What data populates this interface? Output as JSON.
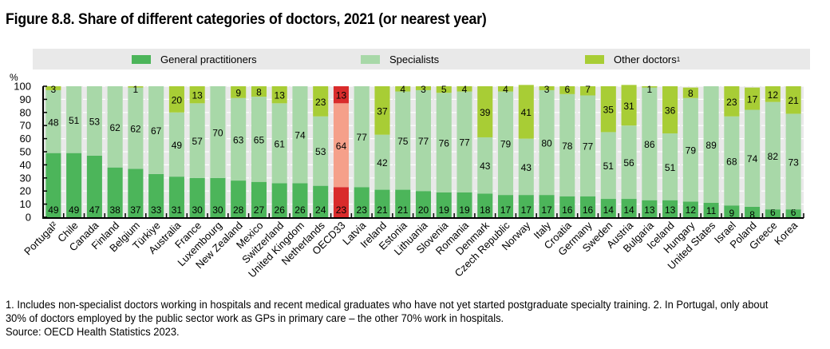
{
  "chart_data": {
    "type": "bar",
    "stacked": true,
    "title": "Figure 8.8. Share of different categories of doctors, 2021 (or nearest year)",
    "ylabel": "%",
    "xlabel": "",
    "ylim": [
      0,
      100
    ],
    "yticks": [
      0,
      10,
      20,
      30,
      40,
      50,
      60,
      70,
      80,
      90,
      100
    ],
    "grid": true,
    "legend_position": "top",
    "categories": [
      "Portugal²",
      "Chile",
      "Canada",
      "Finland",
      "Belgium",
      "Türkiye",
      "Australia",
      "France",
      "Luxembourg",
      "New Zealand",
      "Mexico",
      "Switzerland",
      "United Kingdom",
      "Netherlands",
      "OECD33",
      "Latvia",
      "Ireland",
      "Estonia",
      "Lithuania",
      "Slovenia",
      "Romania",
      "Denmark",
      "Czech Republic",
      "Norway",
      "Italy",
      "Croatia",
      "Germany",
      "Sweden",
      "Austria",
      "Bulgaria",
      "Iceland",
      "Hungary",
      "United States",
      "Israel",
      "Poland",
      "Greece",
      "Korea"
    ],
    "highlight_category": "OECD33",
    "series": [
      {
        "name": "General practitioners",
        "color": "#4cb55a",
        "highlight_color": "#d92b2b",
        "values": [
          49,
          49,
          47,
          38,
          37,
          33,
          31,
          30,
          30,
          28,
          27,
          26,
          26,
          24,
          23,
          23,
          21,
          21,
          20,
          19,
          19,
          18,
          17,
          17,
          17,
          16,
          16,
          14,
          14,
          13,
          13,
          12,
          11,
          9,
          8,
          6,
          6
        ]
      },
      {
        "name": "Specialists",
        "color": "#a8d8a8",
        "highlight_color": "#f5a08a",
        "values": [
          48,
          51,
          53,
          62,
          62,
          67,
          49,
          57,
          70,
          63,
          65,
          61,
          74,
          53,
          64,
          77,
          42,
          75,
          77,
          76,
          77,
          43,
          79,
          43,
          80,
          78,
          77,
          51,
          56,
          86,
          51,
          79,
          89,
          68,
          74,
          82,
          73
        ]
      },
      {
        "name": "Other doctors¹",
        "color": "#a8cd35",
        "highlight_color": "#d92b2b",
        "values": [
          3,
          null,
          null,
          null,
          1,
          null,
          20,
          13,
          null,
          9,
          8,
          13,
          null,
          23,
          13,
          null,
          37,
          4,
          3,
          5,
          4,
          39,
          4,
          41,
          3,
          6,
          7,
          35,
          31,
          1,
          36,
          8,
          null,
          23,
          17,
          12,
          21
        ]
      }
    ]
  },
  "legend": {
    "items": [
      {
        "label": "General practitioners",
        "color": "#4cb55a"
      },
      {
        "label": "Specialists",
        "color": "#a8d8a8"
      },
      {
        "label": "Other doctors",
        "sup": "1",
        "color": "#a8cd35"
      }
    ]
  },
  "notes": {
    "line1": "1. Includes non-specialist doctors working in hospitals and recent medical graduates who have not yet started postgraduate specialty training. 2. In Portugal, only about",
    "line2": "30% of doctors employed by the public sector work as GPs in primary care – the other 70% work in hospitals.",
    "source": "Source: OECD Health Statistics 2023."
  }
}
